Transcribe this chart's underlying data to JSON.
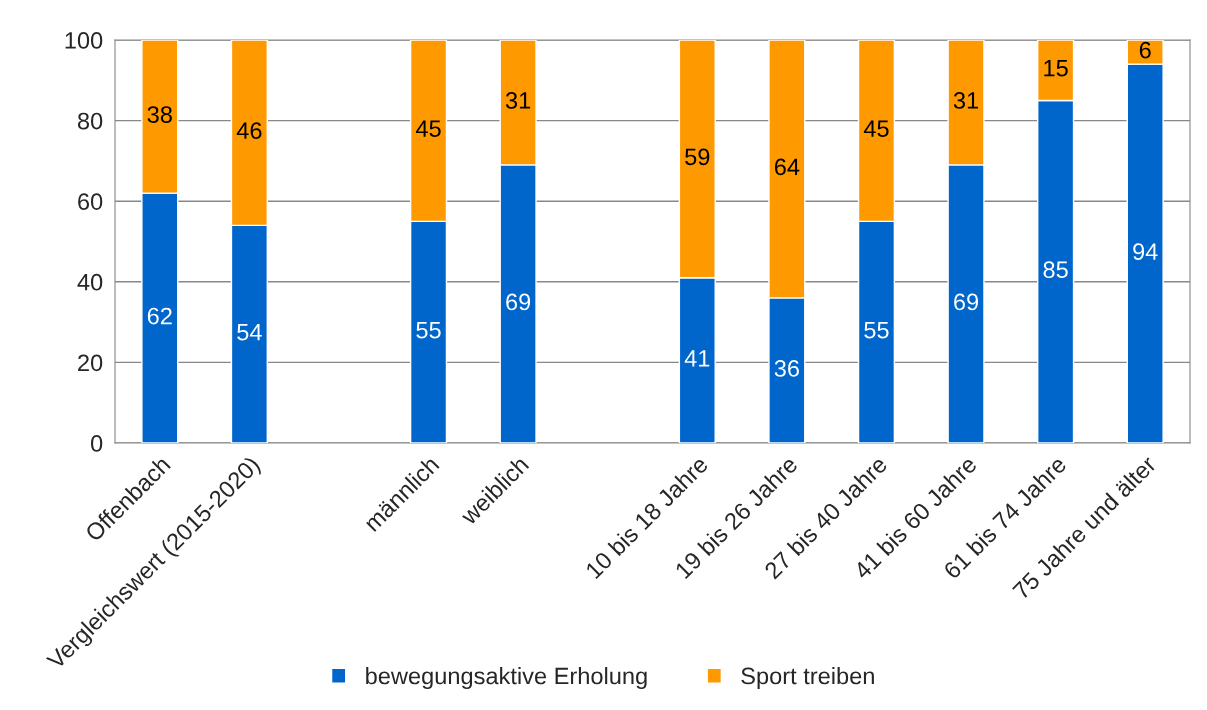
{
  "chart_data": {
    "type": "bar",
    "stacked": true,
    "categories": [
      "Offenbach",
      "Vergleichswert (2015-2020)",
      null,
      "männlich",
      "weiblich",
      null,
      "10 bis 18 Jahre",
      "19 bis 26 Jahre",
      "27 bis 40 Jahre",
      "41 bis 60 Jahre",
      "61 bis 74 Jahre",
      "75 Jahre und älter"
    ],
    "series": [
      {
        "name": "bewegungsaktive Erholung",
        "color": "#0066cc",
        "values": [
          62,
          54,
          null,
          55,
          69,
          null,
          41,
          36,
          55,
          69,
          85,
          94
        ]
      },
      {
        "name": "Sport treiben",
        "color": "#ff9900",
        "values": [
          38,
          46,
          null,
          45,
          31,
          null,
          59,
          64,
          45,
          31,
          15,
          6
        ]
      }
    ],
    "ylim": [
      0,
      100
    ],
    "yticks": [
      0,
      20,
      40,
      60,
      80,
      100
    ],
    "grid": "y",
    "legend": "bottom",
    "data_labels": true
  }
}
